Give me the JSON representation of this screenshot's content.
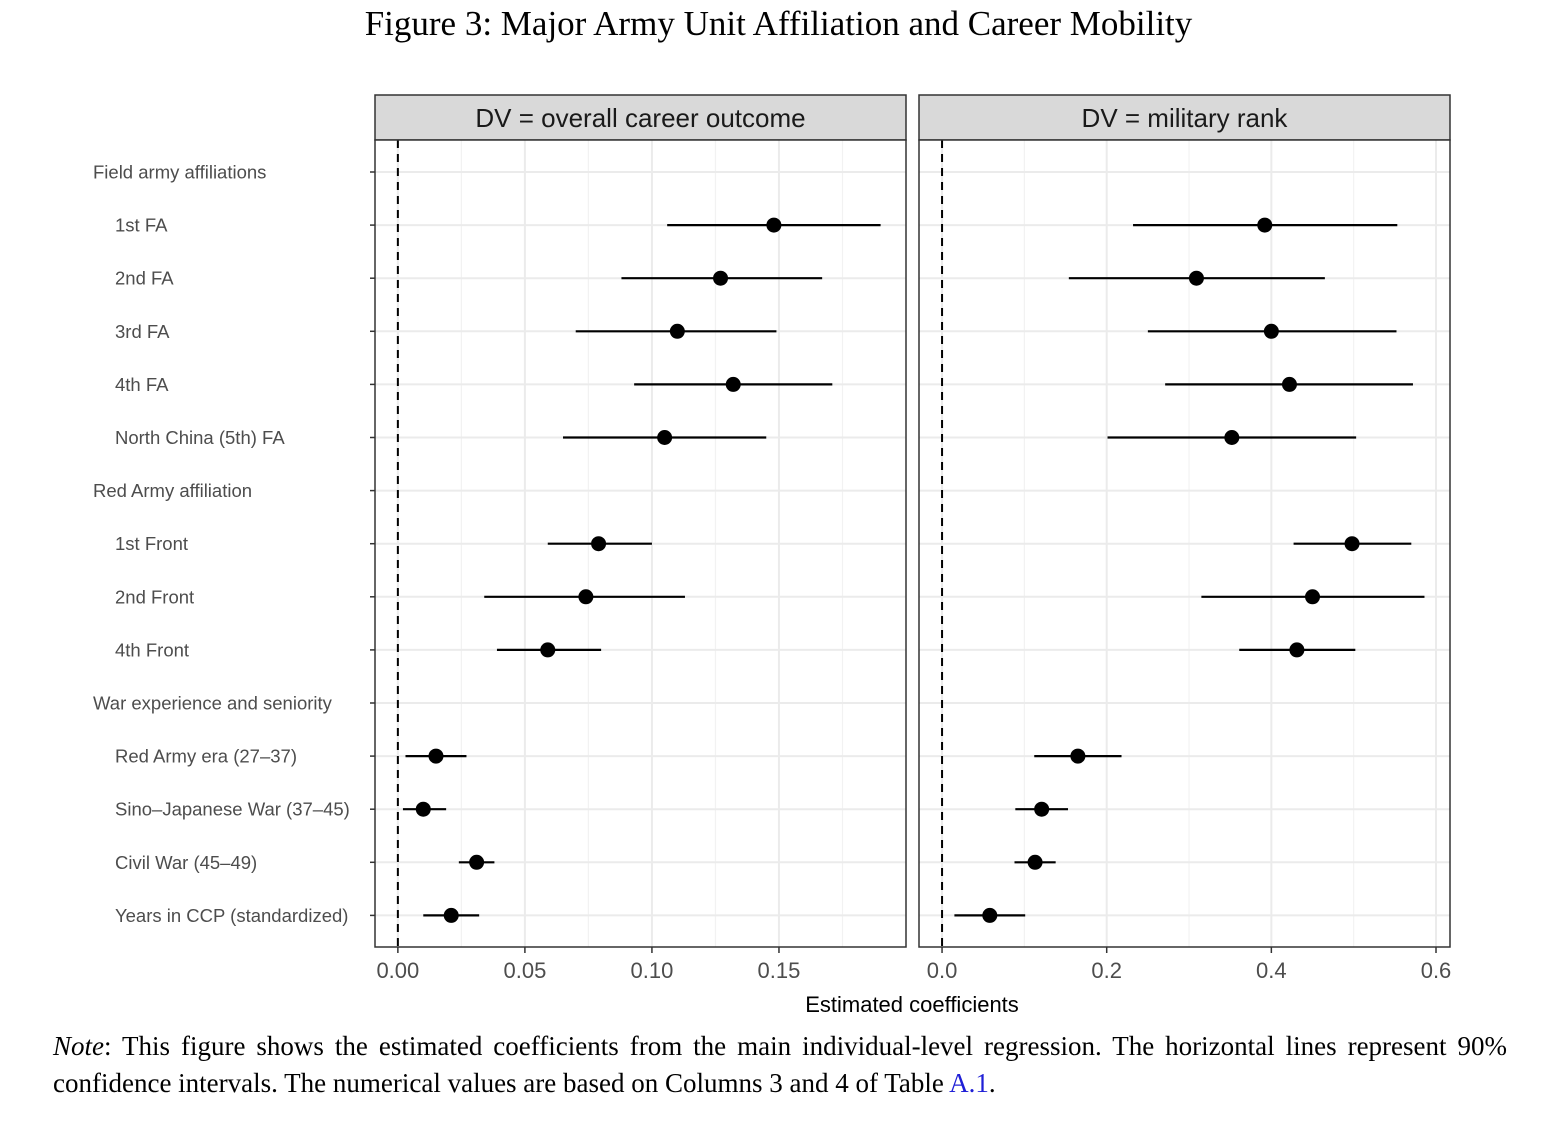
{
  "figure_title": "Figure 3: Major Army Unit Affiliation and Career Mobility",
  "note": {
    "label": "Note",
    "text_before_link": ": This figure shows the estimated coefficients from the main individual-level regression.  The horizontal lines represent 90% confidence intervals. The numerical values are based on Columns 3 and 4 of Table ",
    "link": "A.1",
    "text_after_link": "."
  },
  "chart_data": {
    "type": "forest",
    "xlabel": "Estimated coefficients",
    "rows": [
      {
        "label": "Field army affiliations",
        "header": true
      },
      {
        "label": "1st FA",
        "header": false
      },
      {
        "label": "2nd FA",
        "header": false
      },
      {
        "label": "3rd FA",
        "header": false
      },
      {
        "label": "4th FA",
        "header": false
      },
      {
        "label": "North China (5th) FA",
        "header": false
      },
      {
        "label": "Red Army affiliation",
        "header": true
      },
      {
        "label": "1st Front",
        "header": false
      },
      {
        "label": "2nd Front",
        "header": false
      },
      {
        "label": "4th Front",
        "header": false
      },
      {
        "label": "War experience and seniority",
        "header": true
      },
      {
        "label": "Red Army era (27–37)",
        "header": false
      },
      {
        "label": "Sino–Japanese War (37–45)",
        "header": false
      },
      {
        "label": "Civil War (45–49)",
        "header": false
      },
      {
        "label": "Years in CCP (standardized)",
        "header": false
      }
    ],
    "panels": [
      {
        "title": "DV = overall career outcome",
        "xlim": [
          -0.009,
          0.2
        ],
        "ticks": [
          {
            "value": 0.0,
            "label": "0.00"
          },
          {
            "value": 0.05,
            "label": "0.05"
          },
          {
            "value": 0.1,
            "label": "0.10"
          },
          {
            "value": 0.15,
            "label": "0.15"
          }
        ],
        "minor_ticks": [
          0.025,
          0.075,
          0.125,
          0.175
        ],
        "reference_line": 0,
        "estimates": [
          null,
          {
            "est": 0.148,
            "lo": 0.106,
            "hi": 0.19
          },
          {
            "est": 0.127,
            "lo": 0.088,
            "hi": 0.167
          },
          {
            "est": 0.11,
            "lo": 0.07,
            "hi": 0.149
          },
          {
            "est": 0.132,
            "lo": 0.093,
            "hi": 0.171
          },
          {
            "est": 0.105,
            "lo": 0.065,
            "hi": 0.145
          },
          null,
          {
            "est": 0.079,
            "lo": 0.059,
            "hi": 0.1
          },
          {
            "est": 0.074,
            "lo": 0.034,
            "hi": 0.113
          },
          {
            "est": 0.059,
            "lo": 0.039,
            "hi": 0.08
          },
          null,
          {
            "est": 0.015,
            "lo": 0.003,
            "hi": 0.027
          },
          {
            "est": 0.01,
            "lo": 0.002,
            "hi": 0.019
          },
          {
            "est": 0.031,
            "lo": 0.024,
            "hi": 0.038
          },
          {
            "est": 0.021,
            "lo": 0.01,
            "hi": 0.032
          }
        ]
      },
      {
        "title": "DV = military rank",
        "xlim": [
          -0.028,
          0.617
        ],
        "ticks": [
          {
            "value": 0.0,
            "label": "0.0"
          },
          {
            "value": 0.2,
            "label": "0.2"
          },
          {
            "value": 0.4,
            "label": "0.4"
          },
          {
            "value": 0.6,
            "label": "0.6"
          }
        ],
        "minor_ticks": [
          0.1,
          0.3,
          0.5
        ],
        "reference_line": 0,
        "estimates": [
          null,
          {
            "est": 0.392,
            "lo": 0.232,
            "hi": 0.553
          },
          {
            "est": 0.309,
            "lo": 0.154,
            "hi": 0.465
          },
          {
            "est": 0.4,
            "lo": 0.25,
            "hi": 0.552
          },
          {
            "est": 0.422,
            "lo": 0.271,
            "hi": 0.572
          },
          {
            "est": 0.352,
            "lo": 0.201,
            "hi": 0.503
          },
          null,
          {
            "est": 0.498,
            "lo": 0.427,
            "hi": 0.57
          },
          {
            "est": 0.45,
            "lo": 0.315,
            "hi": 0.586
          },
          {
            "est": 0.431,
            "lo": 0.361,
            "hi": 0.502
          },
          null,
          {
            "est": 0.165,
            "lo": 0.112,
            "hi": 0.218
          },
          {
            "est": 0.121,
            "lo": 0.089,
            "hi": 0.153
          },
          {
            "est": 0.113,
            "lo": 0.088,
            "hi": 0.138
          },
          {
            "est": 0.058,
            "lo": 0.015,
            "hi": 0.101
          }
        ]
      }
    ]
  }
}
